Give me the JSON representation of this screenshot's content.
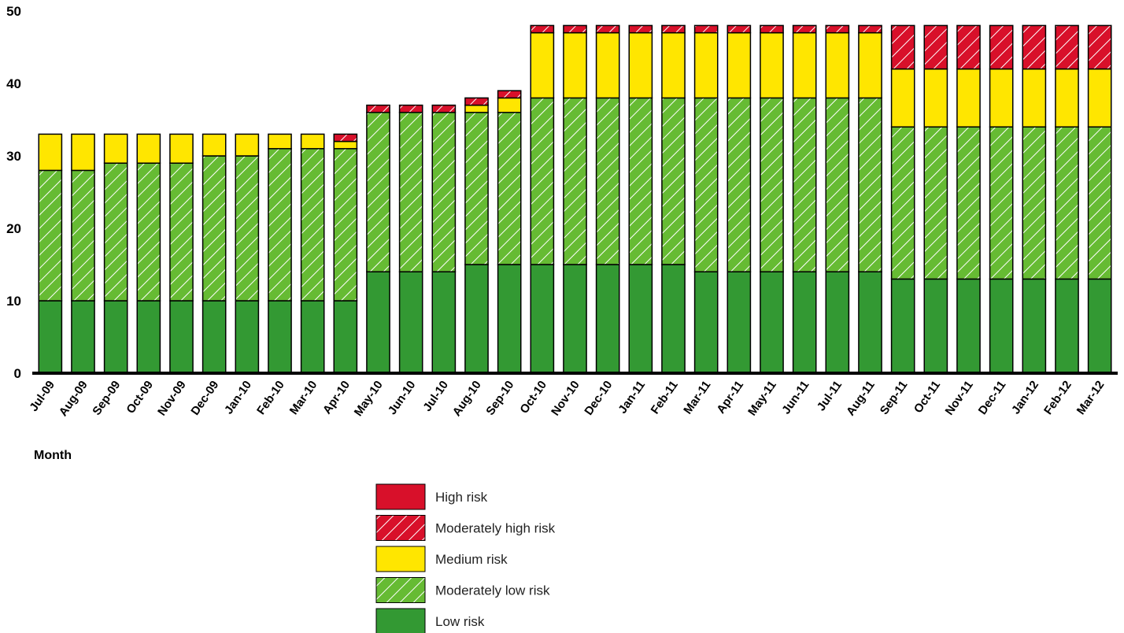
{
  "chart_data": {
    "type": "bar",
    "stacked": true,
    "title": "",
    "xlabel": "Month",
    "ylabel": "",
    "ylim": [
      0,
      50
    ],
    "yticks": [
      0,
      10,
      20,
      30,
      40,
      50
    ],
    "grid": false,
    "legend_position": "bottom-center",
    "categories": [
      "Jul-09",
      "Aug-09",
      "Sep-09",
      "Oct-09",
      "Nov-09",
      "Dec-09",
      "Jan-10",
      "Feb-10",
      "Mar-10",
      "Apr-10",
      "May-10",
      "Jun-10",
      "Jul-10",
      "Aug-10",
      "Sep-10",
      "Oct-10",
      "Nov-10",
      "Dec-10",
      "Jan-11",
      "Feb-11",
      "Mar-11",
      "Apr-11",
      "May-11",
      "Jun-11",
      "Jul-11",
      "Aug-11",
      "Sep-11",
      "Oct-11",
      "Nov-11",
      "Dec-11",
      "Jan-12",
      "Feb-12",
      "Mar-12"
    ],
    "series": [
      {
        "name": "Low risk",
        "color": "#339933",
        "pattern": "solid",
        "values": [
          10,
          10,
          10,
          10,
          10,
          10,
          10,
          10,
          10,
          10,
          14,
          14,
          14,
          15,
          15,
          15,
          15,
          15,
          15,
          15,
          14,
          14,
          14,
          14,
          14,
          14,
          13,
          13,
          13,
          13,
          13,
          13,
          13
        ]
      },
      {
        "name": "Moderately low risk",
        "color": "#66bb33",
        "pattern": "hatched",
        "values": [
          18,
          18,
          19,
          19,
          19,
          20,
          20,
          21,
          21,
          21,
          22,
          22,
          22,
          21,
          21,
          23,
          23,
          23,
          23,
          23,
          24,
          24,
          24,
          24,
          24,
          24,
          21,
          21,
          21,
          21,
          21,
          21,
          21
        ]
      },
      {
        "name": "Medium risk",
        "color": "#ffe600",
        "pattern": "solid",
        "values": [
          5,
          5,
          4,
          4,
          4,
          3,
          3,
          2,
          2,
          1,
          0,
          0,
          0,
          1,
          2,
          9,
          9,
          9,
          9,
          9,
          9,
          9,
          9,
          9,
          9,
          9,
          8,
          8,
          8,
          8,
          8,
          8,
          8
        ]
      },
      {
        "name": "Moderately high risk",
        "color": "#d8102a",
        "pattern": "hatched",
        "values": [
          0,
          0,
          0,
          0,
          0,
          0,
          0,
          0,
          0,
          1,
          1,
          1,
          1,
          1,
          1,
          1,
          1,
          1,
          1,
          1,
          1,
          1,
          1,
          1,
          1,
          1,
          6,
          6,
          6,
          6,
          6,
          6,
          6
        ]
      },
      {
        "name": "High risk",
        "color": "#d8102a",
        "pattern": "solid",
        "values": [
          0,
          0,
          0,
          0,
          0,
          0,
          0,
          0,
          0,
          0,
          0,
          0,
          0,
          0,
          0,
          0,
          0,
          0,
          0,
          0,
          0,
          0,
          0,
          0,
          0,
          0,
          0,
          0,
          0,
          0,
          0,
          0,
          0
        ]
      }
    ],
    "legend_order": [
      "High risk",
      "Moderately high risk",
      "Medium risk",
      "Moderately low risk",
      "Low risk"
    ]
  }
}
